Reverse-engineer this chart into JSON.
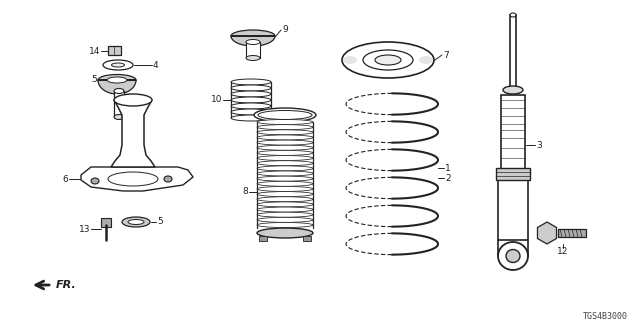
{
  "background_color": "#ffffff",
  "line_color": "#222222",
  "diagram_ref": "TGS4B3000",
  "fig_width": 6.4,
  "fig_height": 3.2,
  "dpi": 100
}
